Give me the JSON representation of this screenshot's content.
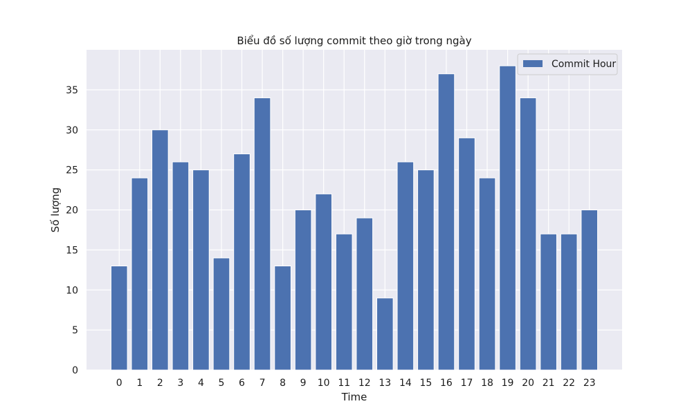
{
  "chart_data": {
    "type": "bar",
    "title": "Biểu đồ số lượng commit theo giờ trong ngày",
    "xlabel": "Time",
    "ylabel": "Số lượng",
    "categories": [
      "0",
      "1",
      "2",
      "3",
      "4",
      "5",
      "6",
      "7",
      "8",
      "9",
      "10",
      "11",
      "12",
      "13",
      "14",
      "15",
      "16",
      "17",
      "18",
      "19",
      "20",
      "21",
      "22",
      "23"
    ],
    "series": [
      {
        "name": "Commit Hour",
        "values": [
          13,
          24,
          30,
          26,
          25,
          14,
          27,
          34,
          13,
          20,
          22,
          17,
          19,
          9,
          26,
          25,
          37,
          29,
          24,
          38,
          34,
          17,
          17,
          20
        ]
      }
    ],
    "ylim": [
      0,
      40
    ],
    "yticks": [
      0,
      5,
      10,
      15,
      20,
      25,
      30,
      35
    ],
    "grid": true,
    "legend_position": "top-right",
    "colors": {
      "bar": "#4c72b0",
      "plot_background": "#eaeaf2",
      "grid": "#ffffff"
    }
  }
}
